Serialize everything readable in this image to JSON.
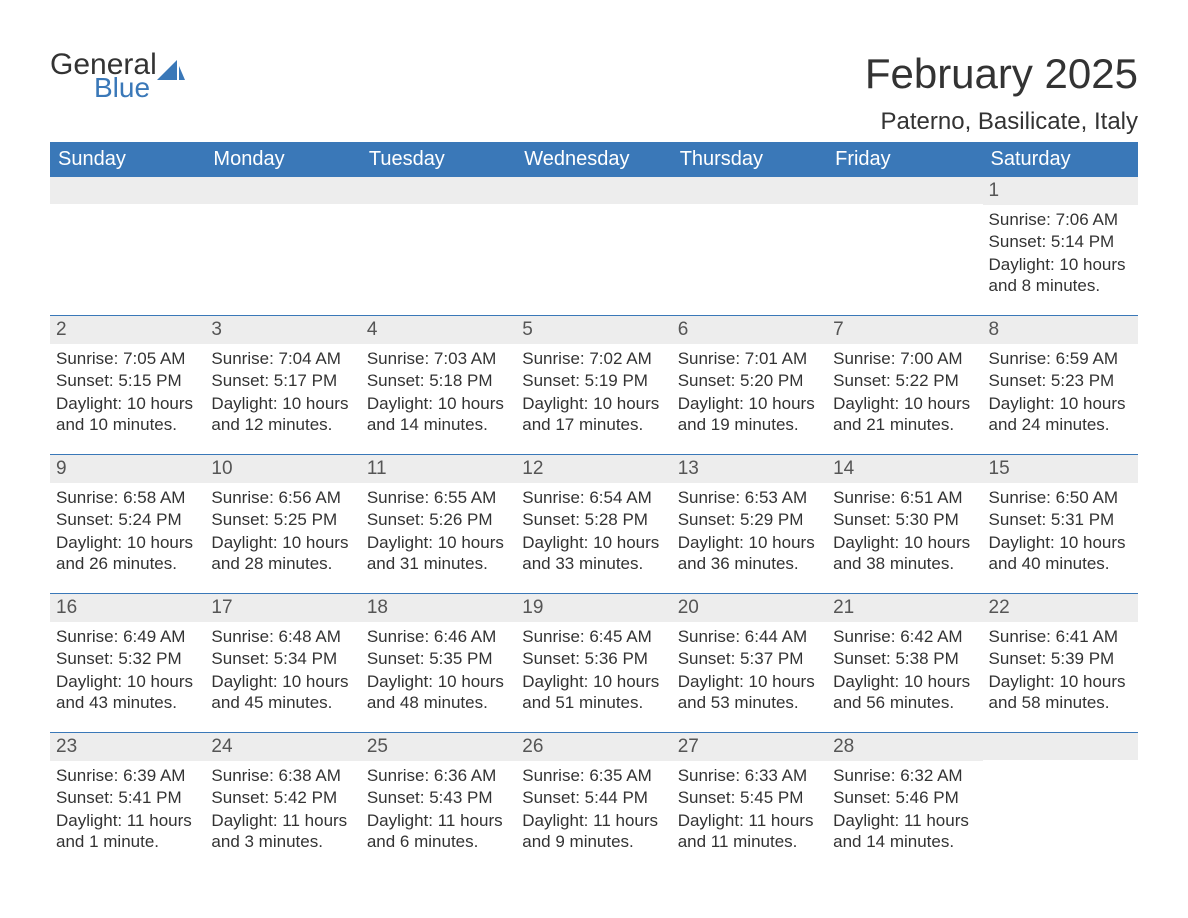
{
  "logo": {
    "word1": "General",
    "word2": "Blue",
    "accent": "#3a78b8",
    "text_color": "#333333"
  },
  "title": "February 2025",
  "location": "Paterno, Basilicate, Italy",
  "colors": {
    "header_bg": "#3a78b8",
    "header_text": "#ffffff",
    "row_border": "#3a78b8",
    "strip_bg": "#ededed",
    "body_text": "#333333",
    "day_num_text": "#555555",
    "background": "#ffffff"
  },
  "day_names": [
    "Sunday",
    "Monday",
    "Tuesday",
    "Wednesday",
    "Thursday",
    "Friday",
    "Saturday"
  ],
  "weeks": [
    [
      {
        "n": ""
      },
      {
        "n": ""
      },
      {
        "n": ""
      },
      {
        "n": ""
      },
      {
        "n": ""
      },
      {
        "n": ""
      },
      {
        "n": "1",
        "sr": "Sunrise: 7:06 AM",
        "ss": "Sunset: 5:14 PM",
        "dl": "Daylight: 10 hours and 8 minutes."
      }
    ],
    [
      {
        "n": "2",
        "sr": "Sunrise: 7:05 AM",
        "ss": "Sunset: 5:15 PM",
        "dl": "Daylight: 10 hours and 10 minutes."
      },
      {
        "n": "3",
        "sr": "Sunrise: 7:04 AM",
        "ss": "Sunset: 5:17 PM",
        "dl": "Daylight: 10 hours and 12 minutes."
      },
      {
        "n": "4",
        "sr": "Sunrise: 7:03 AM",
        "ss": "Sunset: 5:18 PM",
        "dl": "Daylight: 10 hours and 14 minutes."
      },
      {
        "n": "5",
        "sr": "Sunrise: 7:02 AM",
        "ss": "Sunset: 5:19 PM",
        "dl": "Daylight: 10 hours and 17 minutes."
      },
      {
        "n": "6",
        "sr": "Sunrise: 7:01 AM",
        "ss": "Sunset: 5:20 PM",
        "dl": "Daylight: 10 hours and 19 minutes."
      },
      {
        "n": "7",
        "sr": "Sunrise: 7:00 AM",
        "ss": "Sunset: 5:22 PM",
        "dl": "Daylight: 10 hours and 21 minutes."
      },
      {
        "n": "8",
        "sr": "Sunrise: 6:59 AM",
        "ss": "Sunset: 5:23 PM",
        "dl": "Daylight: 10 hours and 24 minutes."
      }
    ],
    [
      {
        "n": "9",
        "sr": "Sunrise: 6:58 AM",
        "ss": "Sunset: 5:24 PM",
        "dl": "Daylight: 10 hours and 26 minutes."
      },
      {
        "n": "10",
        "sr": "Sunrise: 6:56 AM",
        "ss": "Sunset: 5:25 PM",
        "dl": "Daylight: 10 hours and 28 minutes."
      },
      {
        "n": "11",
        "sr": "Sunrise: 6:55 AM",
        "ss": "Sunset: 5:26 PM",
        "dl": "Daylight: 10 hours and 31 minutes."
      },
      {
        "n": "12",
        "sr": "Sunrise: 6:54 AM",
        "ss": "Sunset: 5:28 PM",
        "dl": "Daylight: 10 hours and 33 minutes."
      },
      {
        "n": "13",
        "sr": "Sunrise: 6:53 AM",
        "ss": "Sunset: 5:29 PM",
        "dl": "Daylight: 10 hours and 36 minutes."
      },
      {
        "n": "14",
        "sr": "Sunrise: 6:51 AM",
        "ss": "Sunset: 5:30 PM",
        "dl": "Daylight: 10 hours and 38 minutes."
      },
      {
        "n": "15",
        "sr": "Sunrise: 6:50 AM",
        "ss": "Sunset: 5:31 PM",
        "dl": "Daylight: 10 hours and 40 minutes."
      }
    ],
    [
      {
        "n": "16",
        "sr": "Sunrise: 6:49 AM",
        "ss": "Sunset: 5:32 PM",
        "dl": "Daylight: 10 hours and 43 minutes."
      },
      {
        "n": "17",
        "sr": "Sunrise: 6:48 AM",
        "ss": "Sunset: 5:34 PM",
        "dl": "Daylight: 10 hours and 45 minutes."
      },
      {
        "n": "18",
        "sr": "Sunrise: 6:46 AM",
        "ss": "Sunset: 5:35 PM",
        "dl": "Daylight: 10 hours and 48 minutes."
      },
      {
        "n": "19",
        "sr": "Sunrise: 6:45 AM",
        "ss": "Sunset: 5:36 PM",
        "dl": "Daylight: 10 hours and 51 minutes."
      },
      {
        "n": "20",
        "sr": "Sunrise: 6:44 AM",
        "ss": "Sunset: 5:37 PM",
        "dl": "Daylight: 10 hours and 53 minutes."
      },
      {
        "n": "21",
        "sr": "Sunrise: 6:42 AM",
        "ss": "Sunset: 5:38 PM",
        "dl": "Daylight: 10 hours and 56 minutes."
      },
      {
        "n": "22",
        "sr": "Sunrise: 6:41 AM",
        "ss": "Sunset: 5:39 PM",
        "dl": "Daylight: 10 hours and 58 minutes."
      }
    ],
    [
      {
        "n": "23",
        "sr": "Sunrise: 6:39 AM",
        "ss": "Sunset: 5:41 PM",
        "dl": "Daylight: 11 hours and 1 minute."
      },
      {
        "n": "24",
        "sr": "Sunrise: 6:38 AM",
        "ss": "Sunset: 5:42 PM",
        "dl": "Daylight: 11 hours and 3 minutes."
      },
      {
        "n": "25",
        "sr": "Sunrise: 6:36 AM",
        "ss": "Sunset: 5:43 PM",
        "dl": "Daylight: 11 hours and 6 minutes."
      },
      {
        "n": "26",
        "sr": "Sunrise: 6:35 AM",
        "ss": "Sunset: 5:44 PM",
        "dl": "Daylight: 11 hours and 9 minutes."
      },
      {
        "n": "27",
        "sr": "Sunrise: 6:33 AM",
        "ss": "Sunset: 5:45 PM",
        "dl": "Daylight: 11 hours and 11 minutes."
      },
      {
        "n": "28",
        "sr": "Sunrise: 6:32 AM",
        "ss": "Sunset: 5:46 PM",
        "dl": "Daylight: 11 hours and 14 minutes."
      },
      {
        "n": ""
      }
    ]
  ]
}
